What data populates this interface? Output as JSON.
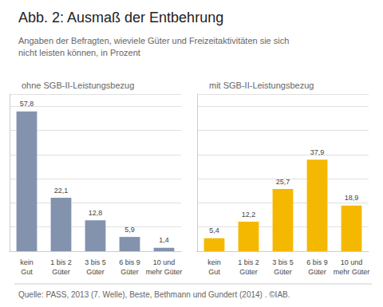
{
  "title": "Abb. 2: Ausmaß der Entbehrung",
  "subtitle": [
    "Angaben der Befragten, wieviele Güter und Freizeitaktivitäten sie sich",
    "nicht leisten können, in Prozent"
  ],
  "annotations": [
    "Quelle: PASS, 2013 (7. Welle), Beste, Bethmann und Gundert (2014) . ©IAB."
  ],
  "chart_data": [
    {
      "type": "bar",
      "title": "ohne SGB-II-Leistungsbezug",
      "categories": [
        "kein\nGut",
        "1 bis 2\nGüter",
        "3 bis 5\nGüter",
        "6 bis 9\nGüter",
        "10 und\nmehr Güter"
      ],
      "values": [
        57.8,
        22.1,
        12.8,
        5.9,
        1.4
      ],
      "value_labels": [
        "57,8",
        "22,1",
        "12,8",
        "5,9",
        "1,4"
      ],
      "color": "#8393AE",
      "ylim": [
        0,
        65
      ],
      "yticks": [
        0,
        10,
        20,
        30,
        40,
        50,
        60
      ],
      "grid": true,
      "data_labels": true,
      "tick_labels": "x"
    },
    {
      "type": "bar",
      "title": "mit SGB-II-Leistungsbezug",
      "categories": [
        "kein\nGut",
        "1 bis 2\nGüter",
        "3 bis 5\nGüter",
        "6 bis 9\nGüter",
        "10 und\nmehr Güter"
      ],
      "values": [
        5.4,
        12.2,
        25.7,
        37.9,
        18.9
      ],
      "value_labels": [
        "5,4",
        "12,2",
        "25,7",
        "37,9",
        "18,9"
      ],
      "color": "#F5B800",
      "ylim": [
        0,
        65
      ],
      "yticks": [
        0,
        10,
        20,
        30,
        40,
        50,
        60
      ],
      "grid": true,
      "data_labels": true,
      "tick_labels": "x"
    }
  ]
}
